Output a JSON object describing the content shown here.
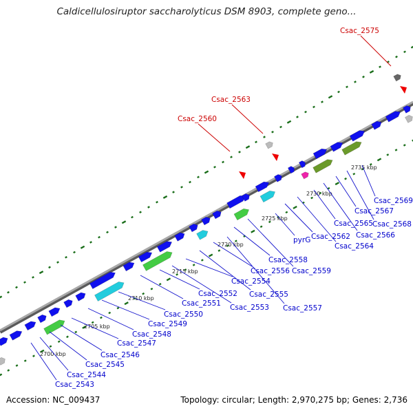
{
  "title": "Caldicellulosiruptor saccharolyticus DSM 8903, complete geno...",
  "accession": "Accession: NC_009437",
  "info": "Topology: circular; Length: 2,970,275 bp; Genes: 2,736",
  "colors": {
    "backbone": "#8c8c8c",
    "cds": "#1010ee",
    "green": "#44cc44",
    "cyan": "#22ccdd",
    "olive": "#6b9a2a",
    "magenta": "#ee22aa",
    "grey": "#bbbbbb",
    "dots": "#1a6e1a",
    "gene_label": "#0000cc",
    "highlight": "#cc0000"
  },
  "ticks": [
    "2700 kbp",
    "2705 kbp",
    "2710 kbp",
    "2715 kbp",
    "2720 kbp",
    "2725 kbp",
    "2730 kbp",
    "2735 kbp"
  ],
  "gene_labels": [
    "Csac_2543",
    "Csac_2544",
    "Csac_2545",
    "Csac_2546",
    "Csac_2547",
    "Csac_2548",
    "Csac_2549",
    "Csac_2550",
    "Csac_2551",
    "Csac_2552",
    "Csac_2553",
    "Csac_2554",
    "Csac_2555",
    "Csac_2556",
    "Csac_2557",
    "Csac_2558",
    "Csac_2559",
    "pyrG",
    "Csac_2562",
    "Csac_2564",
    "Csac_2565",
    "Csac_2566",
    "Csac_2567",
    "Csac_2568",
    "Csac_2569"
  ],
  "highlighted": [
    "Csac_2560",
    "Csac_2563",
    "Csac_2575"
  ]
}
